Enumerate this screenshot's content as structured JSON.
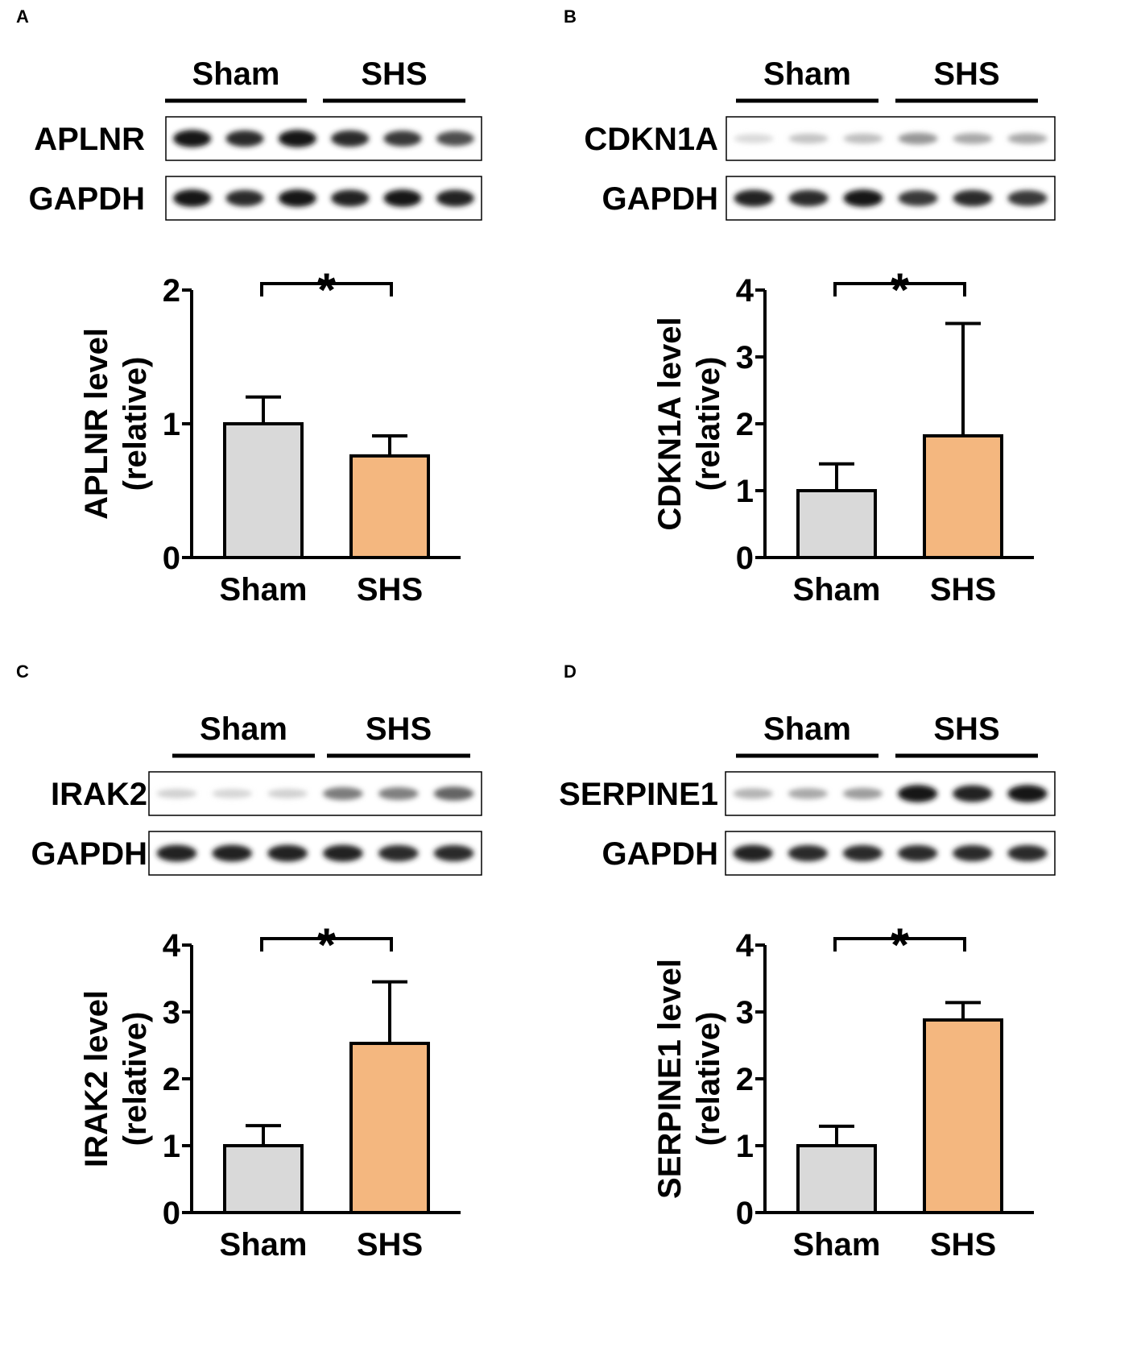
{
  "figure": {
    "colors": {
      "sham": "#d9d9d9",
      "shs": "#f4b77f",
      "stroke": "#000000"
    }
  },
  "chart_data": [
    {
      "panel": "A",
      "type": "bar",
      "blot": {
        "group_labels": [
          "Sham",
          "SHS"
        ],
        "rows": [
          {
            "label": "APLNR",
            "band_intensity": [
              0.95,
              0.85,
              0.95,
              0.85,
              0.8,
              0.7
            ]
          },
          {
            "label": "GAPDH",
            "band_intensity": [
              0.95,
              0.85,
              0.95,
              0.9,
              0.95,
              0.9
            ]
          }
        ]
      },
      "categories": [
        "Sham",
        "SHS"
      ],
      "values": [
        1.0,
        0.76
      ],
      "errors": [
        0.2,
        0.15
      ],
      "ylabel": [
        "APLNR level",
        "(relative)"
      ],
      "ylim": [
        0,
        2
      ],
      "yticks": [
        0,
        1,
        2
      ],
      "significance": "*"
    },
    {
      "panel": "B",
      "type": "bar",
      "blot": {
        "group_labels": [
          "Sham",
          "SHS"
        ],
        "rows": [
          {
            "label": "CDKN1A",
            "band_intensity": [
              0.08,
              0.18,
              0.2,
              0.38,
              0.3,
              0.3
            ]
          },
          {
            "label": "GAPDH",
            "band_intensity": [
              0.9,
              0.85,
              0.95,
              0.8,
              0.85,
              0.8
            ]
          }
        ]
      },
      "categories": [
        "Sham",
        "SHS"
      ],
      "values": [
        1.0,
        1.82
      ],
      "errors": [
        0.4,
        1.68
      ],
      "ylabel": [
        "CDKN1A level",
        "(relative)"
      ],
      "ylim": [
        0,
        4
      ],
      "yticks": [
        0,
        1,
        2,
        3,
        4
      ],
      "significance": "*"
    },
    {
      "panel": "C",
      "type": "bar",
      "blot": {
        "group_labels": [
          "Sham",
          "SHS"
        ],
        "rows": [
          {
            "label": "IRAK2",
            "band_intensity": [
              0.12,
              0.1,
              0.12,
              0.5,
              0.48,
              0.6
            ]
          },
          {
            "label": "GAPDH",
            "band_intensity": [
              0.9,
              0.9,
              0.9,
              0.9,
              0.85,
              0.85
            ]
          }
        ]
      },
      "categories": [
        "Sham",
        "SHS"
      ],
      "values": [
        1.0,
        2.53
      ],
      "errors": [
        0.3,
        0.92
      ],
      "ylabel": [
        "IRAK2 level",
        "(relative)"
      ],
      "ylim": [
        0,
        4
      ],
      "yticks": [
        0,
        1,
        2,
        3,
        4
      ],
      "significance": "*"
    },
    {
      "panel": "D",
      "type": "bar",
      "blot": {
        "group_labels": [
          "Sham",
          "SHS"
        ],
        "rows": [
          {
            "label": "SERPINE1",
            "band_intensity": [
              0.25,
              0.3,
              0.35,
              0.95,
              0.9,
              0.95
            ]
          },
          {
            "label": "GAPDH",
            "band_intensity": [
              0.9,
              0.85,
              0.85,
              0.85,
              0.85,
              0.85
            ]
          }
        ]
      },
      "categories": [
        "Sham",
        "SHS"
      ],
      "values": [
        1.0,
        2.88
      ],
      "errors": [
        0.29,
        0.26
      ],
      "ylabel": [
        "SERPINE1 level",
        "(relative)"
      ],
      "ylim": [
        0,
        4
      ],
      "yticks": [
        0,
        1,
        2,
        3,
        4
      ],
      "significance": "*"
    }
  ]
}
